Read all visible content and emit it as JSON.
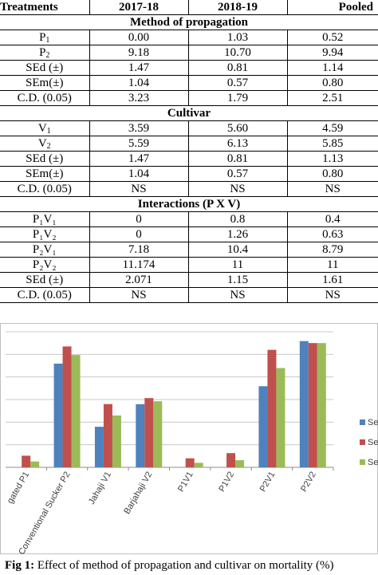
{
  "table": {
    "headers": [
      "Treatments",
      "2017-18",
      "2018-19",
      "Pooled"
    ],
    "sections": [
      {
        "title": "Method of propagation",
        "rows": [
          {
            "label": "P",
            "sub": "1",
            "cols": [
              "0.00",
              "1.03",
              "0.52"
            ]
          },
          {
            "label": "P",
            "sub": "2",
            "cols": [
              "9.18",
              "10.70",
              "9.94"
            ]
          },
          {
            "label": "SEd (±)",
            "cols": [
              "1.47",
              "0.81",
              "1.14"
            ]
          },
          {
            "label": "SEm(±)",
            "cols": [
              "1.04",
              "0.57",
              "0.80"
            ]
          },
          {
            "label": "C.D. (0.05)",
            "cols": [
              "3.23",
              "1.79",
              "2.51"
            ]
          }
        ]
      },
      {
        "title": "Cultivar",
        "rows": [
          {
            "label": "V",
            "sub": "1",
            "cols": [
              "3.59",
              "5.60",
              "4.59"
            ]
          },
          {
            "label": "V",
            "sub": "2",
            "cols": [
              "5.59",
              "6.13",
              "5.85"
            ]
          },
          {
            "label": "SEd (±)",
            "cols": [
              "1.47",
              "0.81",
              "1.13"
            ]
          },
          {
            "label": "SEm(±)",
            "cols": [
              "1.04",
              "0.57",
              "0.80"
            ]
          },
          {
            "label": "C.D. (0.05)",
            "cols": [
              "NS",
              "NS",
              "NS"
            ]
          }
        ]
      },
      {
        "title": "Interactions (P X V)",
        "rows": [
          {
            "label": "P₁V₁",
            "cols": [
              "0",
              "0.8",
              "0.4"
            ]
          },
          {
            "label": "P₁V₂",
            "cols": [
              "0",
              "1.26",
              "0.63"
            ]
          },
          {
            "label": "P₂V₁",
            "cols": [
              "7.18",
              "10.4",
              "8.79"
            ]
          },
          {
            "label": "P₂V₂",
            "cols": [
              "11.174",
              "11",
              "11"
            ]
          },
          {
            "label": "SEd (±)",
            "cols": [
              "2.071",
              "1.15",
              "1.61"
            ]
          },
          {
            "label": "C.D. (0.05)",
            "cols": [
              "NS",
              "NS",
              "NS"
            ]
          }
        ]
      }
    ]
  },
  "chart_data": {
    "type": "bar",
    "categories": [
      "gated P1",
      "Conventional Sucker P2",
      "Jahaji V1",
      "Barjahaji V2",
      "P1V1",
      "P1V2",
      "P2V1",
      "P2V2"
    ],
    "series": [
      {
        "name": "Se",
        "color": "#4F81BD",
        "values": [
          0,
          9.18,
          3.59,
          5.59,
          0,
          0,
          7.18,
          11.174
        ]
      },
      {
        "name": "Se",
        "color": "#C0504D",
        "values": [
          1.03,
          10.7,
          5.6,
          6.13,
          0.8,
          1.26,
          10.4,
          11
        ]
      },
      {
        "name": "Se",
        "color": "#9BBB59",
        "values": [
          0.52,
          9.94,
          4.59,
          5.85,
          0.4,
          0.63,
          8.79,
          11
        ]
      }
    ],
    "ylim": [
      0,
      12
    ],
    "grid": true,
    "legend_position": "right"
  },
  "caption": {
    "label": "Fig 1:",
    "text": " Effect of method of propagation and cultivar on mortality (%)"
  }
}
